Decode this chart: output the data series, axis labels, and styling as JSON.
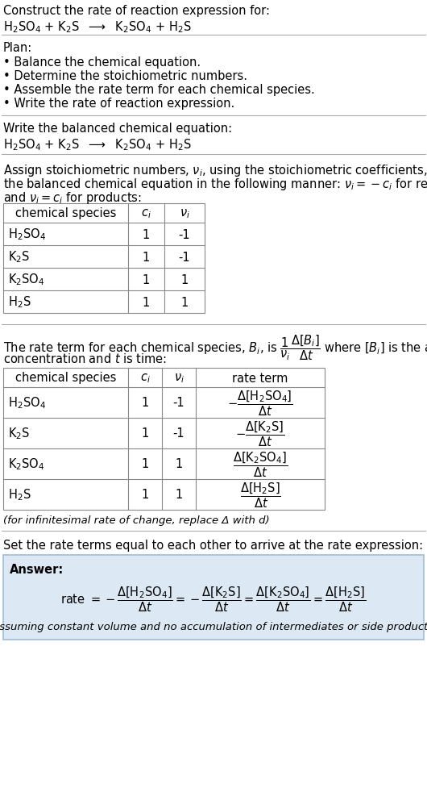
{
  "title_line1": "Construct the rate of reaction expression for:",
  "plan_header": "Plan:",
  "plan_items": [
    "• Balance the chemical equation.",
    "• Determine the stoichiometric numbers.",
    "• Assemble the rate term for each chemical species.",
    "• Write the rate of reaction expression."
  ],
  "balanced_header": "Write the balanced chemical equation:",
  "table1_headers": [
    "chemical species",
    "c_i",
    "v_i"
  ],
  "table1_rows": [
    [
      "H_2SO_4",
      "1",
      "-1"
    ],
    [
      "K_2S",
      "1",
      "-1"
    ],
    [
      "K_2SO_4",
      "1",
      "1"
    ],
    [
      "H_2S",
      "1",
      "1"
    ]
  ],
  "table2_headers": [
    "chemical species",
    "c_i",
    "v_i",
    "rate term"
  ],
  "table2_rows": [
    [
      "H_2SO_4",
      "1",
      "-1",
      "neg_H2SO4"
    ],
    [
      "K_2S",
      "1",
      "-1",
      "neg_K2S"
    ],
    [
      "K_2SO_4",
      "1",
      "1",
      "pos_K2SO4"
    ],
    [
      "H_2S",
      "1",
      "1",
      "pos_H2S"
    ]
  ],
  "infinitesimal_note": "(for infinitesimal rate of change, replace Δ with d)",
  "set_equal_text": "Set the rate terms equal to each other to arrive at the rate expression:",
  "answer_box_color": "#dce9f5",
  "answer_label": "Answer:",
  "assuming_note": "(assuming constant volume and no accumulation of intermediates or side products)",
  "bg_color": "#ffffff",
  "divider_color": "#aaaaaa",
  "table_color": "#888888",
  "answer_border_color": "#a0bcd8"
}
